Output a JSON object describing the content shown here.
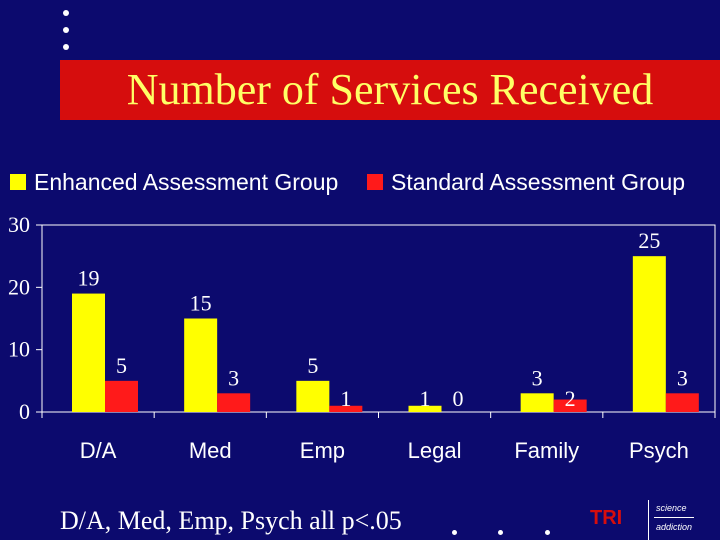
{
  "slide": {
    "title": "Number of Services Received",
    "footnote": "D/A, Med, Emp, Psych all p<.05",
    "logo": {
      "brand": "TRI",
      "top": "science",
      "bottom": "addiction"
    },
    "background": "#0c0a6e",
    "title_bar_color": "#d60d0d",
    "title_color": "#ffff66"
  },
  "chart_data": {
    "type": "bar",
    "categories": [
      "D/A",
      "Med",
      "Emp",
      "Legal",
      "Family",
      "Psych"
    ],
    "series": [
      {
        "name": "Enhanced Assessment Group",
        "color": "#ffff00",
        "values": [
          19,
          15,
          5,
          1,
          3,
          25
        ]
      },
      {
        "name": "Standard Assessment Group",
        "color": "#ff1a1a",
        "values": [
          5,
          3,
          1,
          0,
          2,
          3
        ]
      }
    ],
    "yticks": [
      0,
      10,
      20,
      30
    ],
    "ylim": [
      0,
      30
    ],
    "grid": false,
    "legend": "top"
  }
}
